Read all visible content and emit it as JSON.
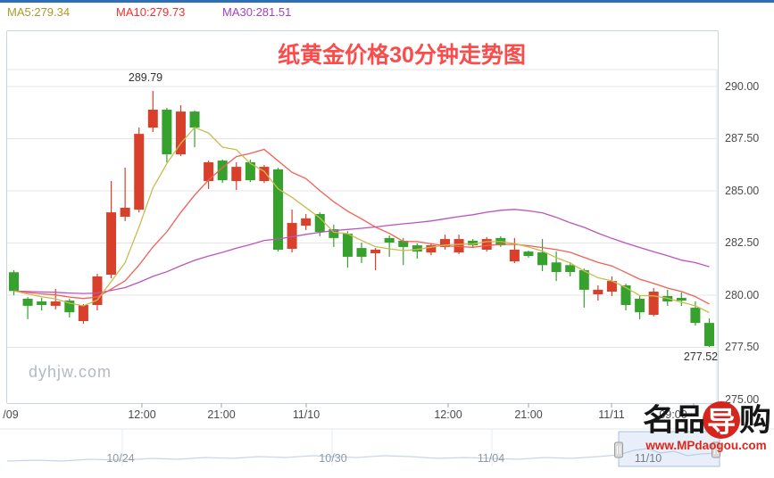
{
  "indicators": {
    "ma5_label": "MA5:279.34",
    "ma10_label": "MA10:279.73",
    "ma30_label": "MA30:281.51",
    "ma5_text_color": "#ab9a2a",
    "ma10_text_color": "#ff2a2a",
    "ma30_text_color": "#a23fc6"
  },
  "watermark": "dyhjw.com",
  "logo": {
    "chars": [
      "名",
      "品",
      "导",
      "购"
    ],
    "url": "www.MPdaogou.com"
  },
  "chart_data": {
    "type": "candlestick",
    "title": "纸黄金价格30分钟走势图",
    "title_color": "#fb4b4b",
    "ylim": [
      275.0,
      290.0
    ],
    "grid": true,
    "y_ticks": [
      "290.00",
      "287.50",
      "285.00",
      "282.50",
      "280.00",
      "277.50",
      "275.00"
    ],
    "x_ticks": [
      "/09",
      "12:00",
      "21:00",
      "11/10",
      "12:00",
      "21:00",
      "11/11",
      "09:00"
    ],
    "high_label": "289.79",
    "low_label": "277.52",
    "ma_last": {
      "ma5": 279.34,
      "ma10": 279.73,
      "ma30": 281.51
    },
    "colors": {
      "up": "#d8402b",
      "down": "#37a12e",
      "ma5_line": "#c8bc50",
      "ma10_line": "#f25f55",
      "ma30_line": "#bc54be"
    },
    "candles_format": [
      "open",
      "high",
      "low",
      "close"
    ],
    "candles": [
      [
        281.1,
        281.2,
        280.0,
        280.2
      ],
      [
        279.83,
        279.91,
        278.85,
        279.49
      ],
      [
        279.7,
        279.87,
        279.27,
        279.53
      ],
      [
        279.49,
        280.3,
        279.32,
        279.7
      ],
      [
        279.74,
        279.83,
        278.93,
        279.18
      ],
      [
        278.76,
        279.57,
        278.63,
        279.53
      ],
      [
        279.53,
        281.02,
        279.27,
        280.9
      ],
      [
        280.98,
        285.47,
        280.81,
        283.97
      ],
      [
        283.76,
        286.11,
        283.55,
        284.19
      ],
      [
        284.1,
        288.03,
        283.97,
        287.73
      ],
      [
        288.03,
        289.79,
        287.82,
        288.89
      ],
      [
        288.89,
        288.98,
        286.37,
        286.75
      ],
      [
        286.75,
        289.1,
        286.67,
        288.8
      ],
      [
        288.8,
        288.85,
        287.09,
        288.03
      ],
      [
        285.47,
        286.45,
        285.09,
        286.37
      ],
      [
        286.45,
        286.5,
        285.38,
        285.51
      ],
      [
        285.47,
        286.37,
        285.04,
        286.15
      ],
      [
        286.37,
        286.5,
        285.42,
        285.51
      ],
      [
        285.47,
        286.24,
        285.38,
        286.15
      ],
      [
        286.03,
        286.11,
        282.09,
        282.18
      ],
      [
        282.22,
        284.1,
        282.05,
        283.46
      ],
      [
        283.33,
        283.89,
        283.12,
        283.68
      ],
      [
        283.89,
        283.97,
        282.82,
        283.03
      ],
      [
        283.16,
        283.38,
        282.31,
        282.74
      ],
      [
        282.95,
        283.07,
        281.32,
        281.84
      ],
      [
        282.26,
        282.52,
        281.54,
        281.84
      ],
      [
        282.01,
        282.26,
        281.2,
        282.18
      ],
      [
        282.74,
        282.86,
        281.84,
        282.52
      ],
      [
        282.61,
        282.74,
        281.45,
        282.31
      ],
      [
        282.39,
        282.48,
        281.75,
        282.09
      ],
      [
        282.05,
        282.48,
        281.92,
        282.39
      ],
      [
        282.31,
        282.9,
        282.18,
        282.69
      ],
      [
        282.05,
        282.9,
        281.97,
        282.69
      ],
      [
        282.61,
        282.69,
        282.26,
        282.39
      ],
      [
        282.18,
        282.78,
        282.09,
        282.69
      ],
      [
        282.74,
        282.82,
        282.31,
        282.39
      ],
      [
        281.62,
        282.74,
        281.54,
        282.18
      ],
      [
        282.09,
        282.14,
        281.8,
        281.88
      ],
      [
        282.05,
        282.69,
        281.15,
        281.44
      ],
      [
        281.57,
        282.09,
        280.68,
        281.11
      ],
      [
        281.44,
        281.57,
        280.9,
        281.11
      ],
      [
        281.2,
        281.28,
        279.4,
        280.26
      ],
      [
        280.04,
        280.47,
        279.74,
        280.26
      ],
      [
        280.17,
        280.9,
        279.96,
        280.68
      ],
      [
        280.47,
        280.55,
        279.27,
        279.53
      ],
      [
        279.83,
        279.96,
        278.85,
        279.18
      ],
      [
        279.06,
        280.34,
        278.98,
        280.17
      ],
      [
        279.96,
        280.26,
        279.49,
        279.7
      ],
      [
        279.87,
        280.13,
        279.49,
        279.74
      ],
      [
        279.4,
        279.7,
        278.55,
        278.67
      ],
      [
        278.67,
        278.89,
        277.52,
        277.56
      ]
    ],
    "navigator_dates": [
      "10/24",
      "10/30",
      "11/04",
      "11/10"
    ],
    "navigator_selection": "11/10"
  }
}
